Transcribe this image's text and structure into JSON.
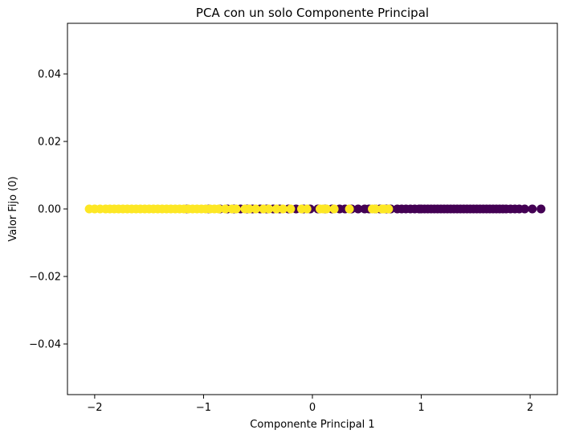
{
  "chart_data": {
    "type": "scatter",
    "title": "PCA con un solo Componente Principal",
    "xlabel": "Componente Principal 1",
    "ylabel": "Valor Fijo (0)",
    "xlim": [
      -2.25,
      2.25
    ],
    "ylim": [
      -0.055,
      0.055
    ],
    "x_ticks": [
      -2,
      -1,
      0,
      1,
      2
    ],
    "x_tick_labels": [
      "−2",
      "−1",
      "0",
      "1",
      "2"
    ],
    "y_ticks": [
      -0.04,
      -0.02,
      0.0,
      0.02,
      0.04
    ],
    "y_tick_labels": [
      "−0.04",
      "−0.02",
      "0.00",
      "0.02",
      "0.04"
    ],
    "grid": false,
    "legend": "none",
    "colors": {
      "class_0": "#440154",
      "class_1": "#fde725"
    },
    "series": [
      {
        "color_key": "class_0",
        "x": [
          -1.15,
          -0.95,
          -0.85,
          -0.78,
          -0.72,
          -0.66,
          -0.6,
          -0.55,
          -0.48,
          -0.42,
          -0.36,
          -0.3,
          -0.22,
          -0.15,
          -0.08,
          -0.02,
          0.05,
          0.12,
          0.18,
          0.25,
          0.3,
          0.36,
          0.42,
          0.48,
          0.52,
          0.58,
          0.62,
          0.68,
          0.72,
          0.78,
          0.82,
          0.86,
          0.9,
          0.94,
          0.98,
          1.0,
          1.03,
          1.06,
          1.09,
          1.12,
          1.15,
          1.18,
          1.21,
          1.24,
          1.27,
          1.3,
          1.33,
          1.36,
          1.39,
          1.42,
          1.45,
          1.48,
          1.51,
          1.54,
          1.57,
          1.6,
          1.63,
          1.66,
          1.69,
          1.72,
          1.75,
          1.78,
          1.82,
          1.86,
          1.9,
          1.95,
          2.02,
          2.1
        ],
        "y": [
          0,
          0,
          0,
          0,
          0,
          0,
          0,
          0,
          0,
          0,
          0,
          0,
          0,
          0,
          0,
          0,
          0,
          0,
          0,
          0,
          0,
          0,
          0,
          0,
          0,
          0,
          0,
          0,
          0,
          0,
          0,
          0,
          0,
          0,
          0,
          0,
          0,
          0,
          0,
          0,
          0,
          0,
          0,
          0,
          0,
          0,
          0,
          0,
          0,
          0,
          0,
          0,
          0,
          0,
          0,
          0,
          0,
          0,
          0,
          0,
          0,
          0,
          0,
          0,
          0,
          0,
          0,
          0
        ]
      },
      {
        "color_key": "class_1",
        "x": [
          -2.05,
          -2.0,
          -1.95,
          -1.9,
          -1.86,
          -1.82,
          -1.78,
          -1.74,
          -1.7,
          -1.66,
          -1.62,
          -1.58,
          -1.54,
          -1.5,
          -1.46,
          -1.42,
          -1.38,
          -1.34,
          -1.3,
          -1.26,
          -1.22,
          -1.18,
          -1.14,
          -1.1,
          -1.06,
          -1.02,
          -0.98,
          -0.94,
          -0.9,
          -0.86,
          -0.8,
          -0.74,
          -0.7,
          -0.62,
          -0.58,
          -0.52,
          -0.45,
          -0.4,
          -0.33,
          -0.27,
          -0.2,
          -0.1,
          -0.05,
          0.07,
          0.1,
          0.13,
          0.2,
          0.34,
          0.55,
          0.58,
          0.64,
          0.66,
          0.7
        ],
        "y": [
          0,
          0,
          0,
          0,
          0,
          0,
          0,
          0,
          0,
          0,
          0,
          0,
          0,
          0,
          0,
          0,
          0,
          0,
          0,
          0,
          0,
          0,
          0,
          0,
          0,
          0,
          0,
          0,
          0,
          0,
          0,
          0,
          0,
          0,
          0,
          0,
          0,
          0,
          0,
          0,
          0,
          0,
          0,
          0,
          0,
          0,
          0,
          0,
          0,
          0,
          0,
          0,
          0
        ]
      }
    ]
  }
}
